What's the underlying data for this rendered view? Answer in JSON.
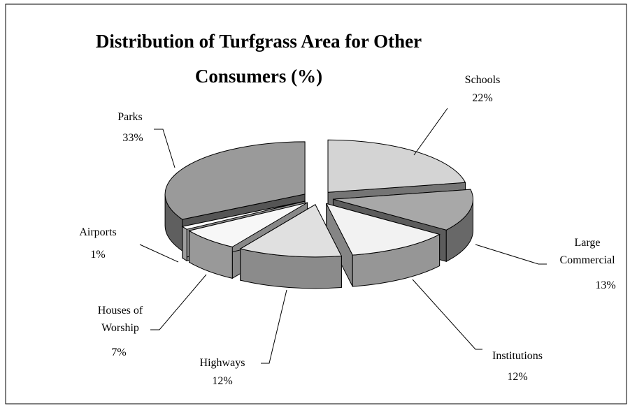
{
  "chart_data": {
    "type": "pie",
    "title": "Distribution of Turfgrass Area for Other Consumers (%)",
    "categories": [
      "Schools",
      "Large Commercial",
      "Institutions",
      "Highways",
      "Houses of Worship",
      "Airports",
      "Parks"
    ],
    "values": [
      22,
      13,
      12,
      12,
      7,
      1,
      33
    ],
    "value_labels": [
      "22%",
      "13%",
      "12%",
      "12%",
      "7%",
      "1%",
      "33%"
    ],
    "colors": [
      "#d4d4d4",
      "#a8a8a8",
      "#f2f2f2",
      "#e0e0e0",
      "#f7f7f7",
      "#ffffff",
      "#9a9a9a"
    ]
  }
}
